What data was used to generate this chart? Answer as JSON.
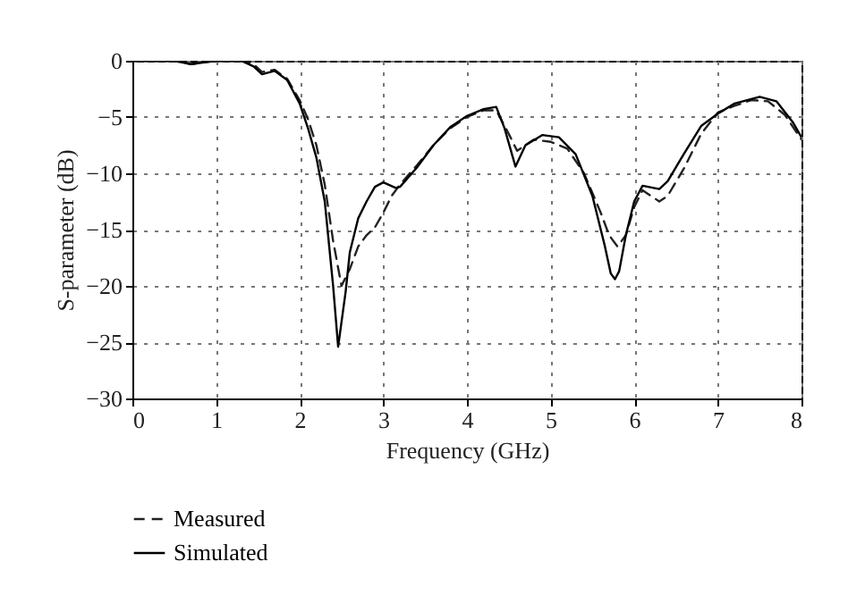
{
  "chart_data": {
    "type": "line",
    "xlabel": "Frequency (GHz)",
    "ylabel": "S-parameter (dB)",
    "xlim": [
      0,
      8
    ],
    "ylim": [
      -30,
      0
    ],
    "xticks": [
      0,
      1,
      2,
      3,
      4,
      5,
      6,
      7,
      8
    ],
    "yticks": [
      0,
      -5,
      -10,
      -15,
      -20,
      -25,
      -30
    ],
    "grid": true,
    "legend": "bottom left",
    "marker": "none",
    "series": [
      {
        "name": "Measured",
        "color": "#222222",
        "line_style": "dashed",
        "x": [
          0,
          0.5,
          0.7,
          1,
          1.3,
          1.45,
          1.55,
          1.7,
          1.85,
          2.0,
          2.1,
          2.2,
          2.3,
          2.4,
          2.5,
          2.6,
          2.7,
          2.8,
          2.9,
          3.0,
          3.1,
          3.2,
          3.4,
          3.6,
          3.8,
          4.0,
          4.2,
          4.35,
          4.5,
          4.6,
          4.7,
          4.8,
          5.0,
          5.2,
          5.4,
          5.6,
          5.7,
          5.8,
          5.9,
          6.0,
          6.1,
          6.2,
          6.3,
          6.4,
          6.6,
          6.8,
          7.0,
          7.2,
          7.4,
          7.6,
          7.8,
          8.0
        ],
        "values": [
          0,
          0,
          -0.3,
          0,
          0,
          -0.3,
          -1,
          -0.8,
          -1.6,
          -3.5,
          -5.2,
          -7.5,
          -11,
          -16,
          -20,
          -18.5,
          -16.5,
          -15.5,
          -14.8,
          -13.5,
          -12,
          -11,
          -9.3,
          -7.5,
          -6,
          -5,
          -4.4,
          -4.4,
          -6.5,
          -8,
          -7.5,
          -7,
          -7.2,
          -7.8,
          -10,
          -13.5,
          -15.5,
          -16.5,
          -15.5,
          -13,
          -11.5,
          -12,
          -12.5,
          -12,
          -9.5,
          -6.5,
          -4.6,
          -4,
          -3.5,
          -3.6,
          -4.8,
          -7
        ]
      },
      {
        "name": "Simulated",
        "color": "#000000",
        "line_style": "solid",
        "x": [
          0,
          0.5,
          0.7,
          1,
          1.3,
          1.45,
          1.55,
          1.7,
          1.85,
          2.0,
          2.1,
          2.2,
          2.3,
          2.4,
          2.46,
          2.55,
          2.6,
          2.7,
          2.8,
          2.9,
          3.0,
          3.15,
          3.2,
          3.4,
          3.6,
          3.8,
          4.0,
          4.2,
          4.35,
          4.45,
          4.58,
          4.7,
          4.9,
          5.1,
          5.3,
          5.5,
          5.65,
          5.72,
          5.77,
          5.82,
          5.9,
          6.0,
          6.1,
          6.3,
          6.4,
          6.6,
          6.8,
          7.0,
          7.2,
          7.5,
          7.7,
          7.9,
          8.0
        ],
        "values": [
          0,
          0,
          -0.3,
          0,
          0,
          -0.5,
          -1.2,
          -0.9,
          -1.7,
          -3.8,
          -6,
          -8.6,
          -12.5,
          -20,
          -25.4,
          -20.5,
          -17,
          -14,
          -12.5,
          -11.2,
          -10.8,
          -11.3,
          -11.2,
          -9.5,
          -7.5,
          -5.9,
          -4.9,
          -4.3,
          -4.1,
          -6,
          -9.4,
          -7.5,
          -6.6,
          -6.8,
          -8.3,
          -12,
          -16.5,
          -18.9,
          -19.4,
          -18.7,
          -15.5,
          -12.5,
          -11.1,
          -11.4,
          -10.7,
          -8.2,
          -5.8,
          -4.7,
          -3.8,
          -3.2,
          -3.6,
          -5.5,
          -6.8
        ]
      }
    ]
  }
}
